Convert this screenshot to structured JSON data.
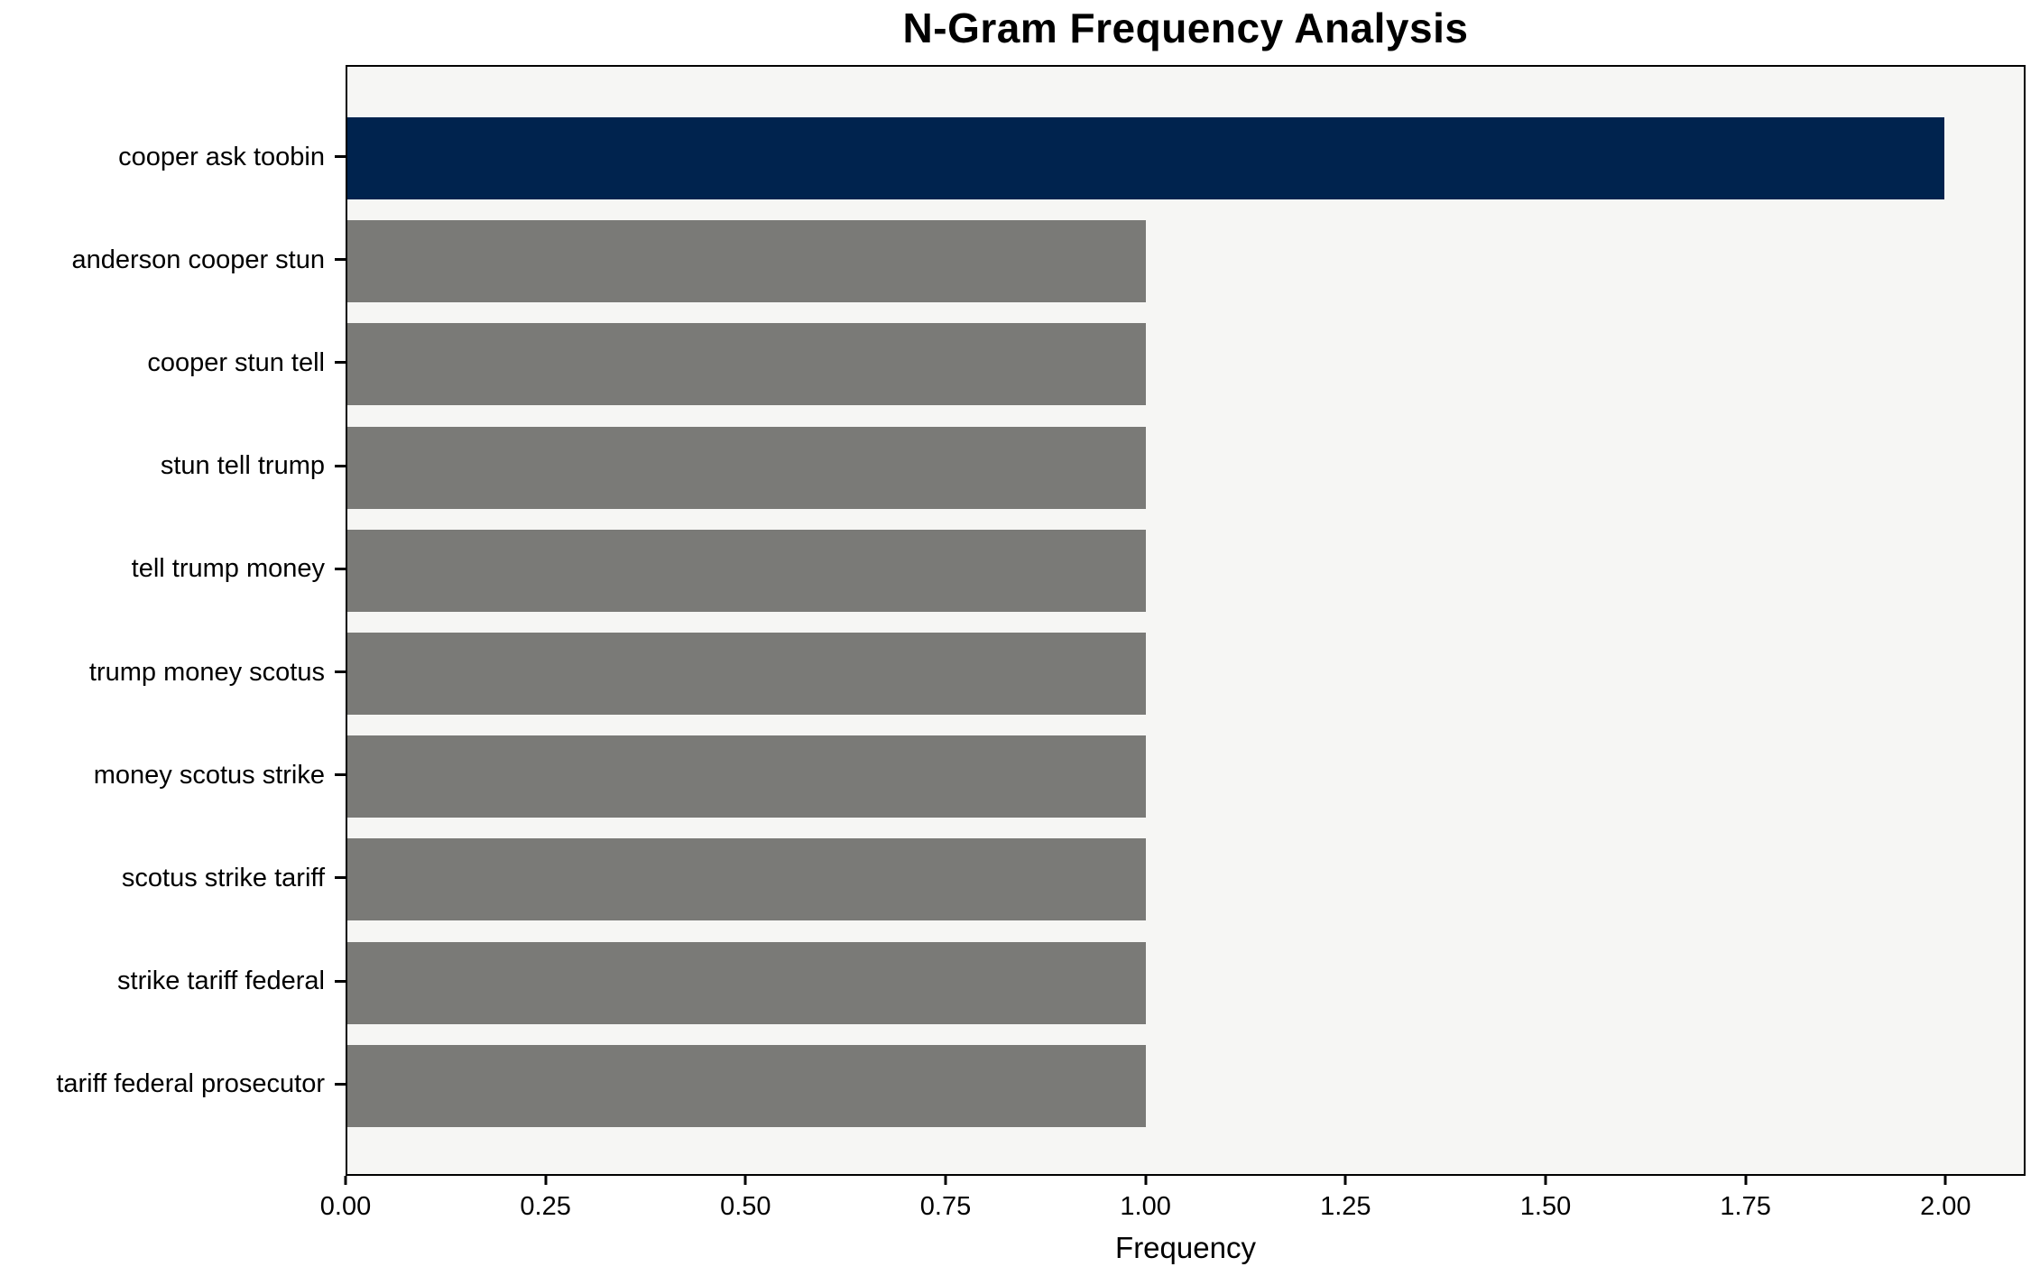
{
  "chart_data": {
    "type": "bar",
    "orientation": "horizontal",
    "title": "N-Gram Frequency Analysis",
    "xlabel": "Frequency",
    "ylabel": "",
    "categories": [
      "cooper ask toobin",
      "anderson cooper stun",
      "cooper stun tell",
      "stun tell trump",
      "tell trump money",
      "trump money scotus",
      "money scotus strike",
      "scotus strike tariff",
      "strike tariff federal",
      "tariff federal prosecutor"
    ],
    "values": [
      2,
      1,
      1,
      1,
      1,
      1,
      1,
      1,
      1,
      1
    ],
    "bar_colors": [
      "#00234e",
      "#7a7a77",
      "#7a7a77",
      "#7a7a77",
      "#7a7a77",
      "#7a7a77",
      "#7a7a77",
      "#7a7a77",
      "#7a7a77",
      "#7a7a77"
    ],
    "xlim": [
      0,
      2.1
    ],
    "xticks": {
      "values": [
        0,
        0.25,
        0.5,
        0.75,
        1.0,
        1.25,
        1.5,
        1.75,
        2.0
      ],
      "labels": [
        "0.00",
        "0.25",
        "0.50",
        "0.75",
        "1.00",
        "1.25",
        "1.50",
        "1.75",
        "2.00"
      ]
    },
    "grid": false,
    "legend": null,
    "colors": {
      "highlight_bar": "#00234e",
      "default_bar": "#7a7a77",
      "plot_background": "#f6f6f4",
      "page_background": "#ffffff",
      "spine": "#000000",
      "text": "#000000"
    }
  }
}
